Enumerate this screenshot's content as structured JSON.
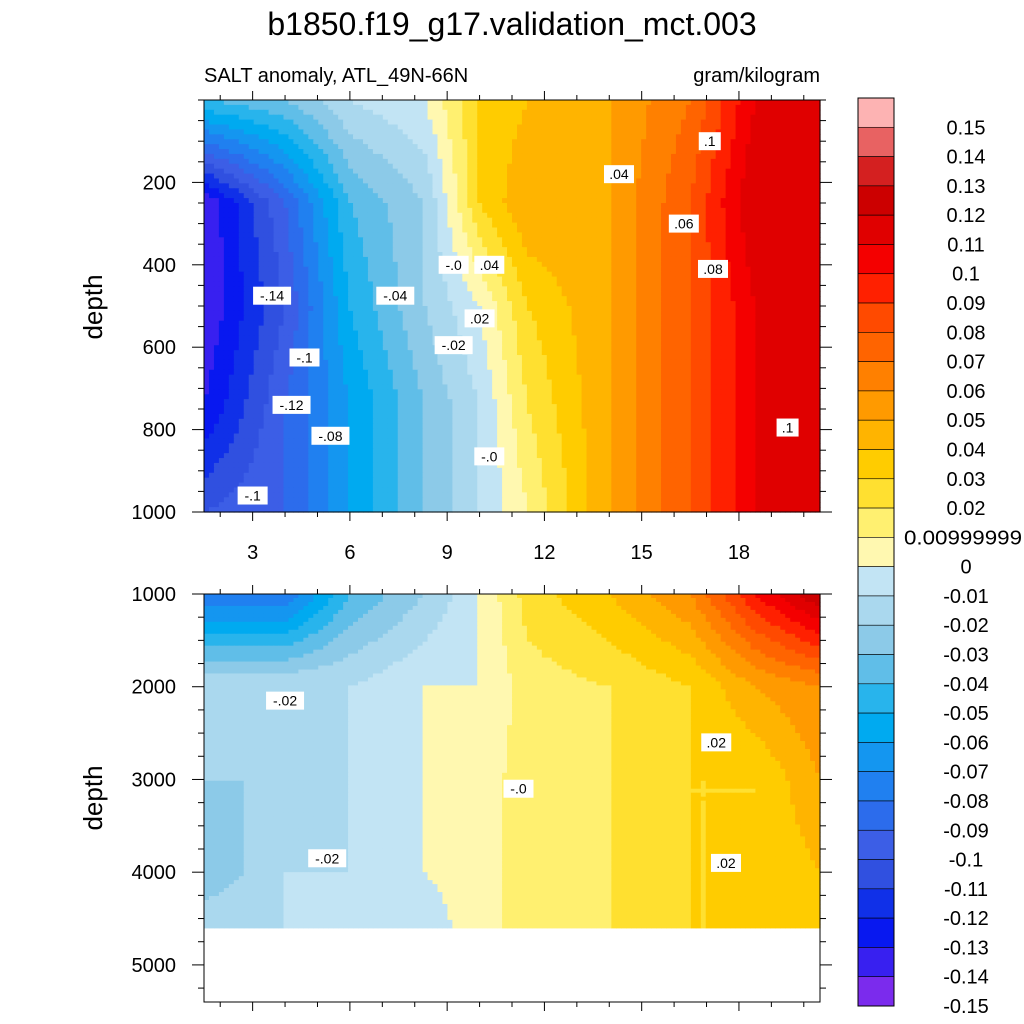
{
  "figure": {
    "title": "b1850.f19_g17.validation_mct.003",
    "left_subtitle": "SALT anomaly, ATL_49N-66N",
    "right_subtitle": "gram/kilogram"
  },
  "chart_data": [
    {
      "type": "heatmap",
      "panel": "upper",
      "variable": "SALT anomaly",
      "region": "ATL_49N-66N",
      "units": "gram/kilogram",
      "xlabel": "",
      "ylabel": "depth",
      "x_ticks": [
        3,
        6,
        9,
        12,
        15,
        18
      ],
      "y_ticks": [
        200,
        400,
        600,
        800,
        1000
      ],
      "xlim": [
        1.5,
        20.5
      ],
      "ylim": [
        1000,
        0
      ],
      "x": [
        1.5,
        4,
        6,
        8.3,
        10,
        11.5,
        14,
        16.5,
        18.5,
        20.5
      ],
      "y": [
        0,
        250,
        500,
        750,
        1000
      ],
      "z": [
        [
          -0.05,
          -0.04,
          -0.02,
          -0.01,
          0.02,
          0.03,
          0.04,
          0.06,
          0.1,
          0.1
        ],
        [
          -0.15,
          -0.1,
          -0.05,
          -0.03,
          0.02,
          0.04,
          0.04,
          0.07,
          0.11,
          0.11
        ],
        [
          -0.15,
          -0.11,
          -0.06,
          -0.03,
          -0.01,
          0.02,
          0.04,
          0.07,
          0.1,
          0.11
        ],
        [
          -0.14,
          -0.1,
          -0.07,
          -0.04,
          -0.02,
          0.01,
          0.04,
          0.07,
          0.1,
          0.11
        ],
        [
          -0.11,
          -0.1,
          -0.07,
          -0.04,
          -0.02,
          0.0,
          0.04,
          0.07,
          0.1,
          0.11
        ]
      ],
      "contour_labels": [
        {
          "text": "-.14",
          "x": 3.6,
          "y": 475
        },
        {
          "text": "-.1",
          "x": 4.6,
          "y": 625
        },
        {
          "text": "-.12",
          "x": 4.2,
          "y": 740
        },
        {
          "text": "-.08",
          "x": 5.4,
          "y": 815
        },
        {
          "text": "-.1",
          "x": 3.0,
          "y": 960
        },
        {
          "text": "-.04",
          "x": 7.4,
          "y": 475
        },
        {
          "text": "-.0",
          "x": 9.2,
          "y": 400
        },
        {
          "text": "-.02",
          "x": 9.2,
          "y": 595
        },
        {
          "text": ".04",
          "x": 10.3,
          "y": 400
        },
        {
          "text": ".02",
          "x": 10.0,
          "y": 530
        },
        {
          "text": "-.0",
          "x": 10.3,
          "y": 865
        },
        {
          "text": ".04",
          "x": 14.3,
          "y": 180
        },
        {
          "text": ".06",
          "x": 16.3,
          "y": 300
        },
        {
          "text": ".08",
          "x": 17.2,
          "y": 410
        },
        {
          "text": ".1",
          "x": 17.1,
          "y": 100
        },
        {
          "text": ".1",
          "x": 19.5,
          "y": 795
        }
      ]
    },
    {
      "type": "heatmap",
      "panel": "lower",
      "variable": "SALT anomaly",
      "region": "ATL_49N-66N",
      "units": "gram/kilogram",
      "xlabel": "",
      "ylabel": "depth",
      "y_ticks": [
        1000,
        2000,
        3000,
        4000,
        5000
      ],
      "xlim": [
        1.5,
        20.5
      ],
      "ylim": [
        5400,
        1000
      ],
      "y_data_max": 4600,
      "x": [
        1.5,
        4,
        6,
        8.3,
        10,
        11.5,
        14,
        16.5,
        18.5,
        20.5
      ],
      "y": [
        1000,
        2000,
        3000,
        4000,
        4600
      ],
      "z": [
        [
          -0.09,
          -0.09,
          -0.05,
          -0.03,
          -0.01,
          0.015,
          0.03,
          0.05,
          0.09,
          0.12
        ],
        [
          -0.02,
          -0.02,
          -0.02,
          -0.01,
          -0.01,
          0.005,
          0.01,
          0.02,
          0.04,
          0.05
        ],
        [
          -0.03,
          -0.03,
          -0.02,
          -0.01,
          -0.005,
          0.005,
          0.01,
          0.02,
          0.02,
          0.04
        ],
        [
          -0.04,
          -0.02,
          -0.02,
          -0.01,
          -0.005,
          0.005,
          0.01,
          0.02,
          0.02,
          0.03
        ],
        [
          -0.02,
          -0.02,
          -0.02,
          -0.015,
          -0.005,
          0.005,
          0.01,
          0.02,
          0.02,
          0.02
        ]
      ],
      "contour_labels": [
        {
          "text": "-.02",
          "x": 4.0,
          "y": 2150
        },
        {
          "text": "-.02",
          "x": 5.3,
          "y": 3850
        },
        {
          "text": "-.0",
          "x": 11.2,
          "y": 3100
        },
        {
          "text": ".02",
          "x": 17.3,
          "y": 2600
        },
        {
          "text": ".02",
          "x": 17.6,
          "y": 3900
        }
      ]
    }
  ],
  "colorbar": {
    "levels": [
      0.15,
      0.14,
      0.13,
      0.12,
      0.11,
      0.1,
      0.09,
      0.08,
      0.07,
      0.06,
      0.05,
      0.04,
      0.03,
      0.02,
      0.00999999,
      0,
      -0.01,
      -0.02,
      -0.03,
      -0.04,
      -0.05,
      -0.06,
      -0.07,
      -0.08,
      -0.09,
      -0.1,
      -0.11,
      -0.12,
      -0.13,
      -0.14,
      -0.15
    ],
    "labels": [
      "0.15",
      "0.14",
      "0.13",
      "0.12",
      "0.11",
      "0.1",
      "0.09",
      "0.08",
      "0.07",
      "0.06",
      "0.05",
      "0.04",
      "0.03",
      "0.02",
      "0.00999999",
      "0",
      "-0.01",
      "-0.02",
      "-0.03",
      "-0.04",
      "-0.05",
      "-0.06",
      "-0.07",
      "-0.08",
      "-0.09",
      "-0.1",
      "-0.11",
      "-0.12",
      "-0.13",
      "-0.14",
      "-0.15"
    ],
    "colors_top_to_bottom": [
      "#fdb3b3",
      "#e86262",
      "#d42020",
      "#cc0000",
      "#e00000",
      "#f40000",
      "#ff2000",
      "#ff4a00",
      "#ff6400",
      "#ff8000",
      "#ff9a00",
      "#ffb400",
      "#ffcc00",
      "#ffe030",
      "#fff070",
      "#fff8b0",
      "#c2e4f4",
      "#aad8ee",
      "#8ccae8",
      "#60bee8",
      "#28b4ec",
      "#00aaf0",
      "#1496f0",
      "#2080f0",
      "#2c6cec",
      "#3c5ee6",
      "#3050e0",
      "#1030e8",
      "#0818f0",
      "#3820f0",
      "#7b2bed"
    ]
  }
}
